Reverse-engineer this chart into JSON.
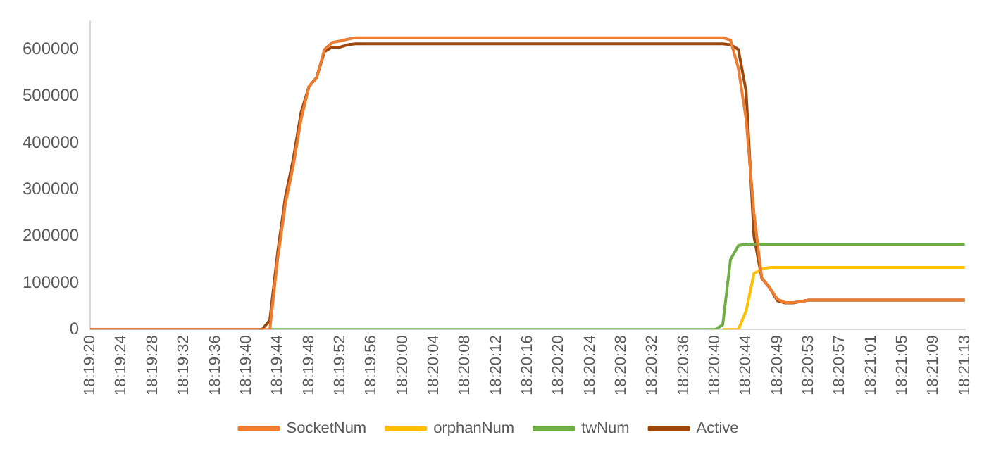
{
  "chart_data": {
    "type": "line",
    "categories": [
      "18:19:20",
      null,
      null,
      null,
      "18:19:24",
      null,
      null,
      null,
      "18:19:28",
      null,
      null,
      null,
      "18:19:32",
      null,
      null,
      null,
      "18:19:36",
      null,
      null,
      null,
      "18:19:40",
      null,
      null,
      null,
      "18:19:44",
      null,
      null,
      null,
      "18:19:48",
      null,
      null,
      null,
      "18:19:52",
      null,
      null,
      null,
      "18:19:56",
      null,
      null,
      null,
      "18:20:00",
      null,
      null,
      null,
      "18:20:04",
      null,
      null,
      null,
      "18:20:08",
      null,
      null,
      null,
      "18:20:12",
      null,
      null,
      null,
      "18:20:16",
      null,
      null,
      null,
      "18:20:20",
      null,
      null,
      null,
      "18:20:24",
      null,
      null,
      null,
      "18:20:28",
      null,
      null,
      null,
      "18:20:32",
      null,
      null,
      null,
      "18:20:36",
      null,
      null,
      null,
      "18:20:40",
      null,
      null,
      null,
      "18:20:44",
      null,
      null,
      null,
      "18:20:49",
      null,
      null,
      null,
      "18:20:53",
      null,
      null,
      null,
      "18:20:57",
      null,
      null,
      null,
      "18:21:01",
      null,
      null,
      null,
      "18:21:05",
      null,
      null,
      null,
      "18:21:09",
      null,
      null,
      null,
      "18:21:13"
    ],
    "series": [
      {
        "name": "SocketNum",
        "color": "#ed7d31",
        "values": [
          0,
          0,
          0,
          0,
          0,
          0,
          0,
          0,
          0,
          0,
          0,
          0,
          0,
          0,
          0,
          0,
          0,
          0,
          0,
          0,
          0,
          0,
          0,
          0,
          150000,
          270000,
          350000,
          450000,
          520000,
          540000,
          600000,
          615000,
          618000,
          622000,
          625000,
          625000,
          625000,
          625000,
          625000,
          625000,
          625000,
          625000,
          625000,
          625000,
          625000,
          625000,
          625000,
          625000,
          625000,
          625000,
          625000,
          625000,
          625000,
          625000,
          625000,
          625000,
          625000,
          625000,
          625000,
          625000,
          625000,
          625000,
          625000,
          625000,
          625000,
          625000,
          625000,
          625000,
          625000,
          625000,
          625000,
          625000,
          625000,
          625000,
          625000,
          625000,
          625000,
          625000,
          625000,
          625000,
          625000,
          625000,
          620000,
          560000,
          450000,
          250000,
          110000,
          90000,
          65000,
          58000,
          58000,
          60000,
          63000,
          63000,
          63000,
          63000,
          63000,
          63000,
          63000,
          63000,
          63000,
          63000,
          63000,
          63000,
          63000,
          63000,
          63000,
          63000,
          63000,
          63000,
          63000,
          63000,
          63000
        ]
      },
      {
        "name": "orphanNum",
        "color": "#ffc000",
        "values": [
          null,
          null,
          null,
          null,
          null,
          null,
          null,
          null,
          null,
          null,
          null,
          null,
          null,
          null,
          null,
          null,
          null,
          null,
          null,
          null,
          null,
          null,
          null,
          null,
          null,
          null,
          null,
          null,
          null,
          null,
          null,
          null,
          null,
          null,
          null,
          null,
          null,
          null,
          null,
          null,
          null,
          null,
          null,
          null,
          null,
          null,
          null,
          null,
          null,
          null,
          null,
          null,
          null,
          null,
          null,
          null,
          null,
          null,
          null,
          null,
          null,
          null,
          null,
          null,
          null,
          null,
          null,
          null,
          null,
          null,
          null,
          null,
          null,
          null,
          null,
          null,
          null,
          null,
          null,
          null,
          null,
          0,
          0,
          0,
          40000,
          120000,
          130000,
          133000,
          133000,
          133000,
          133000,
          133000,
          133000,
          133000,
          133000,
          133000,
          133000,
          133000,
          133000,
          133000,
          133000,
          133000,
          133000,
          133000,
          133000,
          133000,
          133000,
          133000,
          133000,
          133000,
          133000,
          133000,
          133000
        ]
      },
      {
        "name": "twNum",
        "color": "#70ad47",
        "values": [
          null,
          null,
          null,
          null,
          null,
          null,
          null,
          null,
          null,
          null,
          null,
          null,
          null,
          null,
          null,
          null,
          null,
          null,
          null,
          null,
          null,
          null,
          null,
          0,
          0,
          0,
          0,
          0,
          0,
          0,
          0,
          0,
          0,
          0,
          0,
          0,
          0,
          0,
          0,
          0,
          0,
          0,
          0,
          0,
          0,
          0,
          0,
          0,
          0,
          0,
          0,
          0,
          0,
          0,
          0,
          0,
          0,
          0,
          0,
          0,
          0,
          0,
          0,
          0,
          0,
          0,
          0,
          0,
          0,
          0,
          0,
          0,
          0,
          0,
          0,
          0,
          0,
          0,
          0,
          0,
          0,
          10000,
          150000,
          180000,
          183000,
          183000,
          183000,
          183000,
          183000,
          183000,
          183000,
          183000,
          183000,
          183000,
          183000,
          183000,
          183000,
          183000,
          183000,
          183000,
          183000,
          183000,
          183000,
          183000,
          183000,
          183000,
          183000,
          183000,
          183000,
          183000,
          183000,
          183000,
          183000
        ]
      },
      {
        "name": "Active",
        "color": "#9e480e",
        "values": [
          0,
          0,
          0,
          0,
          0,
          0,
          0,
          0,
          0,
          0,
          0,
          0,
          0,
          0,
          0,
          0,
          0,
          0,
          0,
          0,
          0,
          0,
          0,
          20000,
          165000,
          285000,
          365000,
          465000,
          520000,
          540000,
          595000,
          605000,
          605000,
          610000,
          612000,
          612000,
          612000,
          612000,
          612000,
          612000,
          612000,
          612000,
          612000,
          612000,
          612000,
          612000,
          612000,
          612000,
          612000,
          612000,
          612000,
          612000,
          612000,
          612000,
          612000,
          612000,
          612000,
          612000,
          612000,
          612000,
          612000,
          612000,
          612000,
          612000,
          612000,
          612000,
          612000,
          612000,
          612000,
          612000,
          612000,
          612000,
          612000,
          612000,
          612000,
          612000,
          612000,
          612000,
          612000,
          612000,
          612000,
          612000,
          610000,
          600000,
          510000,
          200000,
          110000,
          90000,
          62000,
          57000,
          57000,
          60000,
          63000,
          63000,
          63000,
          63000,
          63000,
          63000,
          63000,
          63000,
          63000,
          63000,
          63000,
          63000,
          63000,
          63000,
          63000,
          63000,
          63000,
          63000,
          63000,
          63000,
          63000
        ]
      }
    ],
    "ylim": [
      0,
      660000
    ],
    "yticks": [
      0,
      100000,
      200000,
      300000,
      400000,
      500000,
      600000
    ],
    "grid": false,
    "legend": "bottom",
    "marker": "none",
    "line_style": "solid"
  }
}
